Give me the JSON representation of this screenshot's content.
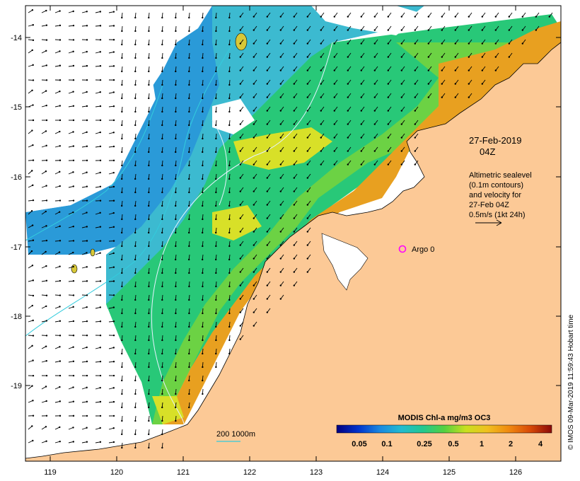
{
  "map": {
    "lon_ticks": [
      "119",
      "120",
      "121",
      "122",
      "123",
      "124",
      "125",
      "126"
    ],
    "lat_ticks": [
      "-14",
      "-15",
      "-16",
      "-17",
      "-18",
      "-19"
    ],
    "colors": {
      "land": "#fcc996",
      "frame": "#000000",
      "contour": "#e6f2ff",
      "deep_isobath": "#33ccdd",
      "vector": "#000000",
      "argo": "#ff00ff"
    }
  },
  "annotation": {
    "datetime_line1": "27-Feb-2019",
    "datetime_line2": "04Z",
    "sealevel_lines": [
      "Altimetric sealevel",
      "(0.1m contours)",
      "and velocity for",
      "27-Feb 04Z",
      "0.5m/s (1kt 24h)"
    ]
  },
  "argo": {
    "label": "Argo 0"
  },
  "isobath_legend": {
    "label": "200  1000m"
  },
  "colorbar": {
    "title": "MODIS Chl-a mg/m3 OC3",
    "ticks": [
      "0.05",
      "0.1",
      "0.25",
      "0.5",
      "1",
      "2",
      "4"
    ],
    "gradient_colors": [
      "#000080",
      "#0033cc",
      "#1a88e0",
      "#22bbd0",
      "#22c890",
      "#55d040",
      "#c8e020",
      "#f0c020",
      "#f08a10",
      "#d84a08",
      "#8b0a0a"
    ]
  },
  "credit": "© IMOS 09-Mar-2019 11:59:43 Hobart time"
}
